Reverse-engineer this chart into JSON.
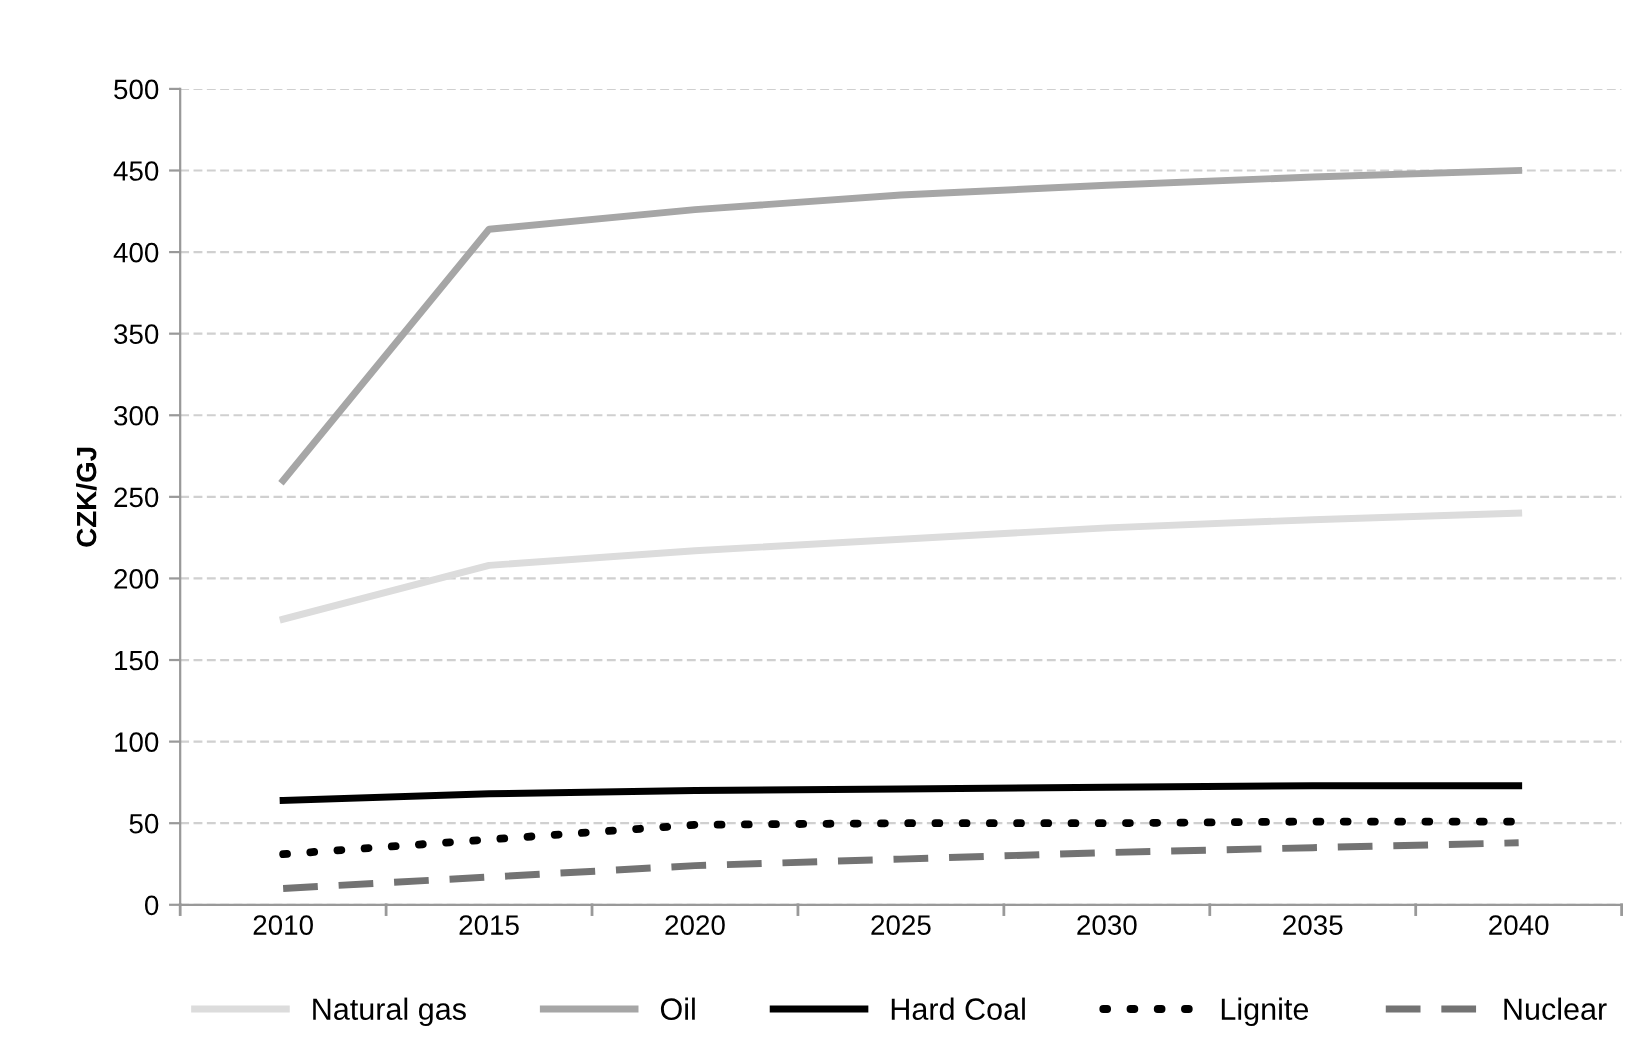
{
  "chart_data": {
    "type": "line",
    "ylabel": "CZK/GJ",
    "categories": [
      "2010",
      "2015",
      "2020",
      "2025",
      "2030",
      "2035",
      "2040"
    ],
    "series": [
      {
        "name": "Natural gas",
        "color": "#dcdcdc",
        "line_style": "solid",
        "values": [
          175,
          208,
          217,
          224,
          231,
          236,
          240
        ]
      },
      {
        "name": "Oil",
        "color": "#a6a6a6",
        "line_style": "solid",
        "values": [
          260,
          414,
          426,
          435,
          441,
          446,
          450
        ]
      },
      {
        "name": "Hard Coal",
        "color": "#000000",
        "line_style": "solid",
        "values": [
          64,
          68,
          70,
          71,
          72,
          73,
          73
        ]
      },
      {
        "name": "Lignite",
        "color": "#000000",
        "line_style": "dotted",
        "values": [
          31,
          40,
          49,
          50,
          50,
          51,
          51
        ]
      },
      {
        "name": "Nuclear",
        "color": "#737373",
        "line_style": "dashed",
        "values": [
          10,
          17,
          24,
          28,
          32,
          35,
          38
        ]
      }
    ],
    "ylim": [
      0,
      500
    ],
    "yticks": [
      0,
      50,
      100,
      150,
      200,
      250,
      300,
      350,
      400,
      450,
      500
    ],
    "grid": "y",
    "legend": "bottom",
    "marker": "none"
  }
}
